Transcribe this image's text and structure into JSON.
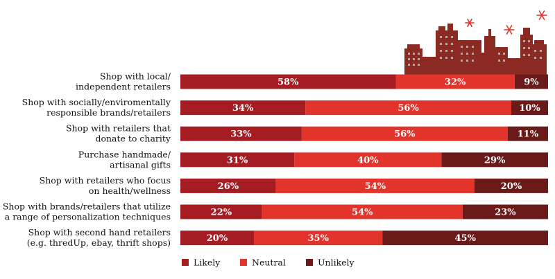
{
  "chart_data": {
    "type": "bar",
    "orientation": "horizontal",
    "stacked": true,
    "percent_stacked": true,
    "categories": [
      [
        "Shop with local/",
        "independent retailers"
      ],
      [
        "Shop with socially/enviromentally",
        "responsible brands/retailers"
      ],
      [
        "Shop with retailers that",
        "donate to charity"
      ],
      [
        "Purchase handmade/",
        "artisanal gifts"
      ],
      [
        "Shop with retailers who focus",
        "on health/wellness"
      ],
      [
        "Shop with brands/retailers that utilize",
        "a range of personalization techniques"
      ],
      [
        "Shop with second hand retailers",
        "(e.g. thredUp, ebay, thrift shops)"
      ]
    ],
    "series": [
      {
        "name": "Likely",
        "color": "#a51d23",
        "values": [
          58,
          34,
          33,
          31,
          26,
          22,
          20
        ]
      },
      {
        "name": "Neutral",
        "color": "#e2342a",
        "values": [
          32,
          56,
          56,
          40,
          54,
          54,
          35
        ]
      },
      {
        "name": "Unlikely",
        "color": "#6b1a1a",
        "values": [
          9,
          10,
          11,
          29,
          20,
          23,
          45
        ]
      }
    ],
    "value_suffix": "%",
    "legend_position": "bottom",
    "grid": false,
    "decoration": "city-skyline-icon"
  }
}
